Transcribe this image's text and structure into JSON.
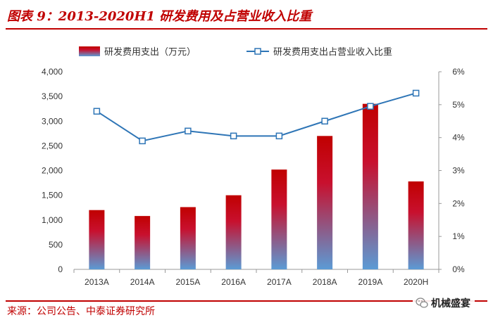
{
  "header": {
    "title": "图表 9：2013-2020H1 研发费用及占营业收入比重"
  },
  "footer": {
    "source": "来源：公司公告、中泰证券研究所",
    "watermark": "机械盛宴"
  },
  "chart_data": {
    "type": "bar",
    "categories": [
      "2013A",
      "2014A",
      "2015A",
      "2016A",
      "2017A",
      "2018A",
      "2019A",
      "2020H"
    ],
    "series": [
      {
        "name": "研发费用支出（万元）",
        "type": "bar",
        "axis": "left",
        "values": [
          1200,
          1080,
          1260,
          1500,
          2020,
          2700,
          3350,
          1780
        ]
      },
      {
        "name": "研发费用支出占营业收入比重",
        "type": "line",
        "axis": "right",
        "values": [
          4.8,
          3.9,
          4.2,
          4.05,
          4.05,
          4.5,
          4.95,
          5.35
        ]
      }
    ],
    "y_left": {
      "min": 0,
      "max": 4000,
      "step": 500,
      "ticks": [
        "0",
        "500",
        "1,000",
        "1,500",
        "2,000",
        "2,500",
        "3,000",
        "3,500",
        "4,000"
      ]
    },
    "y_right": {
      "min": 0,
      "max": 6,
      "step": 1,
      "ticks": [
        "0%",
        "1%",
        "2%",
        "3%",
        "4%",
        "5%",
        "6%"
      ]
    },
    "legend_position": "top",
    "grid": false,
    "colors": {
      "bar_top": "#c00000",
      "bar_bottom": "#5b9bd5",
      "line": "#2e75b6",
      "marker_fill": "#ffffff"
    }
  }
}
